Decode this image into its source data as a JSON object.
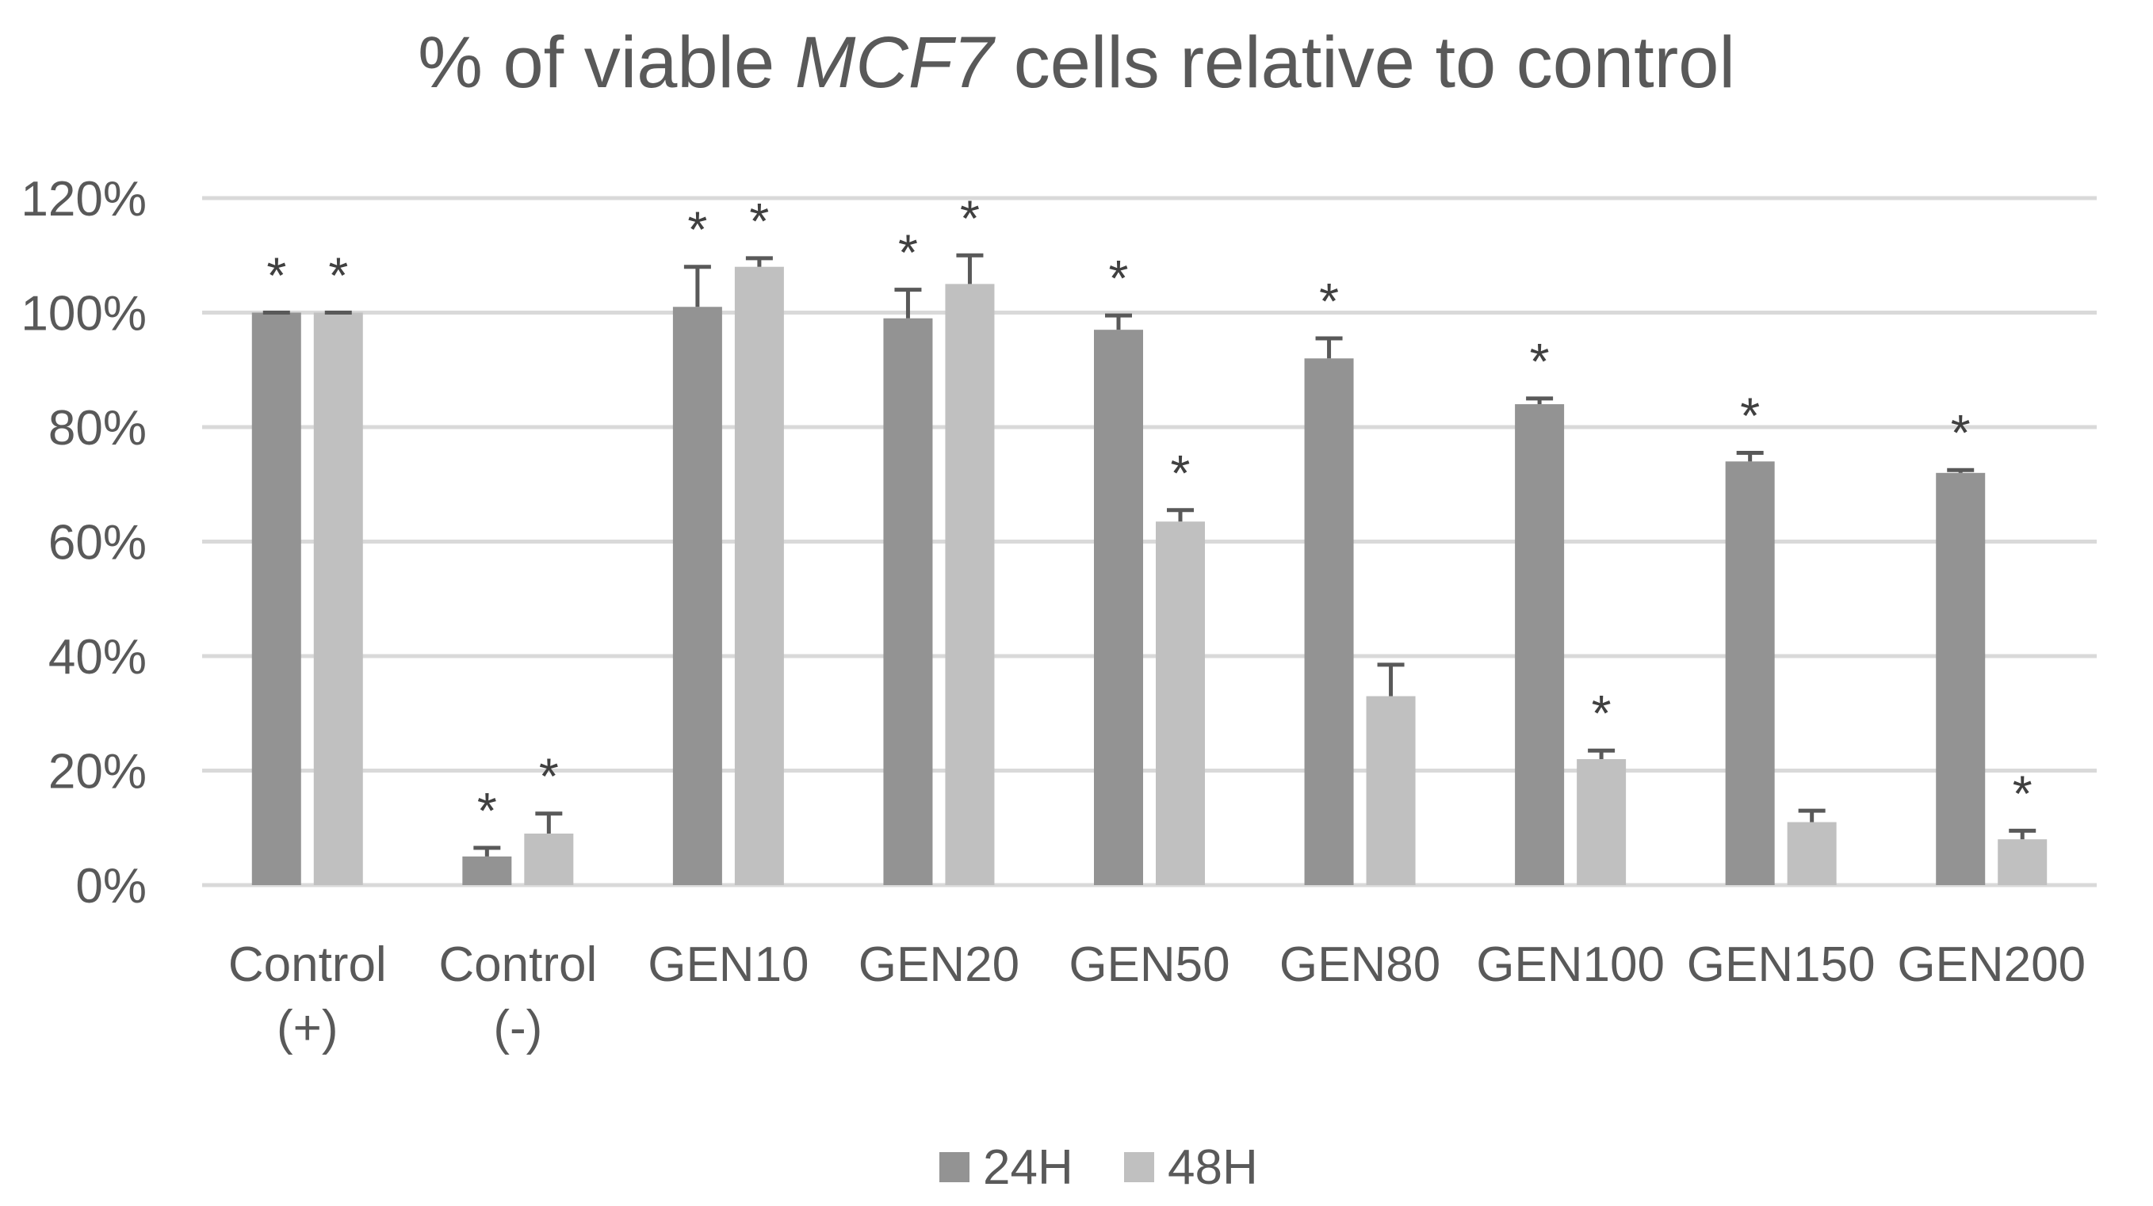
{
  "chart_data": {
    "type": "bar",
    "title_parts": [
      "% of viable ",
      "MCF7",
      " cells relative to control"
    ],
    "xlabel": "",
    "ylabel": "",
    "ylim": [
      0,
      120
    ],
    "y_ticks": [
      "0%",
      "20%",
      "40%",
      "60%",
      "80%",
      "100%",
      "120%"
    ],
    "y_tick_values": [
      0,
      20,
      40,
      60,
      80,
      100,
      120
    ],
    "categories": [
      "Control (+)",
      "Control (-)",
      "GEN10",
      "GEN20",
      "GEN50",
      "GEN80",
      "GEN100",
      "GEN150",
      "GEN200"
    ],
    "category_lines": [
      [
        "Control",
        "(+)"
      ],
      [
        "Control",
        "(-)"
      ],
      [
        "GEN10"
      ],
      [
        "GEN20"
      ],
      [
        "GEN50"
      ],
      [
        "GEN80"
      ],
      [
        "GEN100"
      ],
      [
        "GEN150"
      ],
      [
        "GEN200"
      ]
    ],
    "series": [
      {
        "name": "24H",
        "color": "#939393",
        "values": [
          100,
          5,
          101,
          99,
          97,
          92,
          84,
          74,
          72
        ],
        "errors": [
          0,
          1.5,
          7,
          5,
          2.5,
          3.5,
          1,
          1.5,
          0.5
        ],
        "significant": [
          true,
          true,
          true,
          true,
          true,
          true,
          true,
          true,
          true
        ]
      },
      {
        "name": "48H",
        "color": "#c0c0c0",
        "values": [
          100,
          9,
          108,
          105,
          63.5,
          33,
          22,
          11,
          8
        ],
        "errors": [
          0,
          3.5,
          1.5,
          5,
          2,
          5.5,
          1.5,
          2,
          1.5
        ],
        "significant": [
          true,
          true,
          true,
          true,
          true,
          false,
          true,
          false,
          true
        ]
      }
    ],
    "significance_marker": "*",
    "error_bar_color": "#595959",
    "gridline_color": "#d9d9d9",
    "legend": [
      "24H",
      "48H"
    ],
    "legend_position": "bottom"
  }
}
